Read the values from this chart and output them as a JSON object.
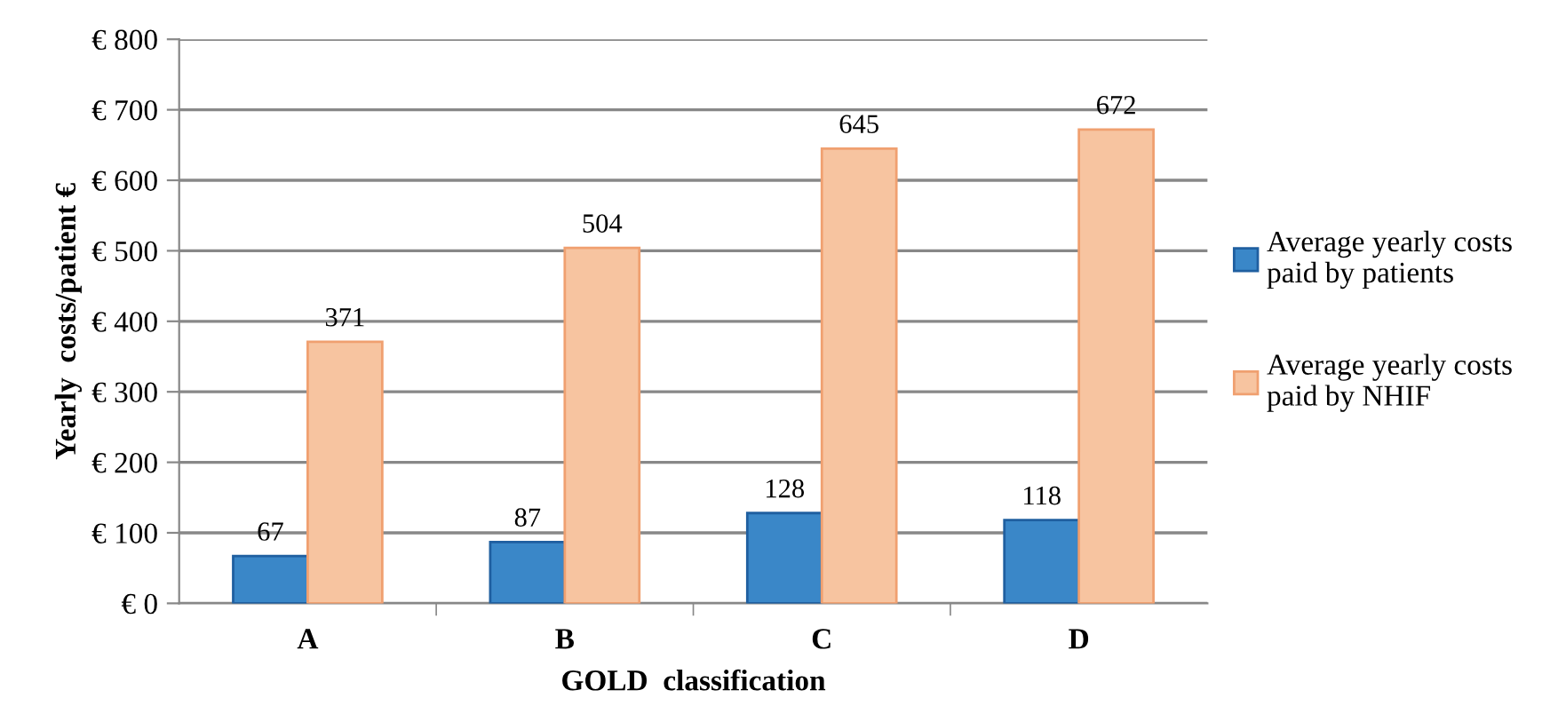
{
  "chart_data": {
    "type": "bar",
    "xlabel": "GOLD  classification",
    "ylabel": "Yearly  costs/patient €",
    "categories": [
      "A",
      "B",
      "C",
      "D"
    ],
    "series": [
      {
        "name": "Average yearly costs\npaid by patients",
        "color": "#3a87c8",
        "values": [
          67,
          87,
          128,
          118
        ]
      },
      {
        "name": "Average yearly costs\npaid by NHIF",
        "color": "#f7c4a0",
        "values": [
          371,
          504,
          645,
          672
        ]
      }
    ],
    "ylim": [
      0,
      800
    ],
    "yticks": [
      {
        "value": 0,
        "label": "€ 0"
      },
      {
        "value": 100,
        "label": "€ 100"
      },
      {
        "value": 200,
        "label": "€ 200"
      },
      {
        "value": 300,
        "label": "€ 300"
      },
      {
        "value": 400,
        "label": "€ 400"
      },
      {
        "value": 500,
        "label": "€ 500"
      },
      {
        "value": 600,
        "label": "€ 600"
      },
      {
        "value": 700,
        "label": "€ 700"
      },
      {
        "value": 800,
        "label": "€ 800"
      }
    ],
    "grid": "y",
    "legend": "right",
    "data_labels": true
  }
}
